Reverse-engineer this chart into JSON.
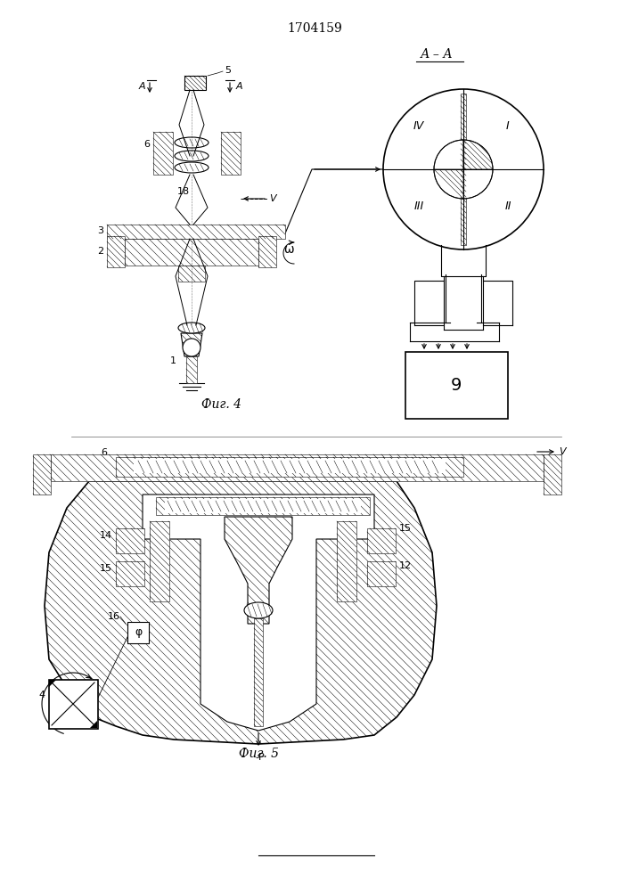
{
  "title": "1704159",
  "fig4_label": "Фиг. 4",
  "fig5_label": "Фиг. 5",
  "bg": "#ffffff",
  "lc": "#000000",
  "fig_width": 7.07,
  "fig_height": 10.0
}
